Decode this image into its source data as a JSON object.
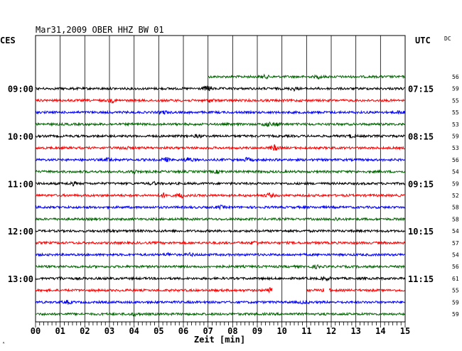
{
  "chart_data": {
    "type": "line",
    "title": "Mar31,2009   OBER HHZ BW 01",
    "left_axis_label": "CES",
    "right_axis_label": "UTC",
    "dc_label": "DC",
    "xlabel": "Zeit [min]",
    "corner_mark": "ᴬ",
    "x_ticks": [
      "00",
      "01",
      "02",
      "03",
      "04",
      "05",
      "06",
      "07",
      "08",
      "09",
      "10",
      "11",
      "12",
      "13",
      "14",
      "15"
    ],
    "xlim": [
      0,
      15
    ],
    "left_time_labels": [
      {
        "row": 1,
        "label": "09:00"
      },
      {
        "row": 5,
        "label": "10:00"
      },
      {
        "row": 9,
        "label": "11:00"
      },
      {
        "row": 13,
        "label": "12:00"
      },
      {
        "row": 17,
        "label": "13:00"
      }
    ],
    "right_time_labels": [
      {
        "row": 1,
        "label": "07:15"
      },
      {
        "row": 5,
        "label": "08:15"
      },
      {
        "row": 9,
        "label": "09:15"
      },
      {
        "row": 13,
        "label": "10:15"
      },
      {
        "row": 17,
        "label": "11:15"
      }
    ],
    "dc_values": [
      "56",
      "59",
      "55",
      "55",
      "53",
      "59",
      "53",
      "56",
      "54",
      "59",
      "52",
      "58",
      "58",
      "54",
      "57",
      "54",
      "56",
      "61",
      "55",
      "59",
      "59"
    ],
    "colors": {
      "black": "#000000",
      "red": "#ff0000",
      "blue": "#0000ff",
      "green": "#006400",
      "grid": "#000000"
    },
    "traces": [
      {
        "color": "green",
        "start_min": 7.0,
        "end_min": 15,
        "events": [
          [
            9.3,
            1.6
          ],
          [
            11.5,
            1.5
          ]
        ]
      },
      {
        "color": "black",
        "start_min": 0,
        "end_min": 15,
        "events": [
          [
            7.0,
            3.5
          ],
          [
            10.5,
            2.0
          ]
        ]
      },
      {
        "color": "red",
        "start_min": 0,
        "end_min": 15,
        "events": [
          [
            3.1,
            2.0
          ],
          [
            7.1,
            2.0
          ]
        ]
      },
      {
        "color": "blue",
        "start_min": 0,
        "end_min": 15,
        "events": [
          [
            5.2,
            1.8
          ],
          [
            14.8,
            2.0
          ]
        ]
      },
      {
        "color": "green",
        "start_min": 0,
        "end_min": 15,
        "events": [
          [
            9.4,
            2.6
          ],
          [
            9.8,
            1.8
          ]
        ]
      },
      {
        "color": "black",
        "start_min": 0,
        "end_min": 15,
        "events": [
          [
            6.6,
            1.6
          ],
          [
            12.8,
            1.8
          ]
        ]
      },
      {
        "color": "red",
        "start_min": 0,
        "end_min": 15,
        "events": [
          [
            3.6,
            2.0
          ],
          [
            9.7,
            3.5
          ]
        ]
      },
      {
        "color": "blue",
        "start_min": 0,
        "end_min": 15,
        "events": [
          [
            3.0,
            2.2
          ],
          [
            5.3,
            2.6
          ],
          [
            6.2,
            2.8
          ],
          [
            8.6,
            2.2
          ]
        ]
      },
      {
        "color": "green",
        "start_min": 0,
        "end_min": 15,
        "events": [
          [
            4.0,
            1.8
          ],
          [
            7.4,
            1.6
          ]
        ]
      },
      {
        "color": "black",
        "start_min": 0,
        "end_min": 15,
        "events": [
          [
            1.5,
            2.2
          ],
          [
            4.8,
            1.6
          ]
        ]
      },
      {
        "color": "red",
        "start_min": 0,
        "end_min": 15,
        "events": [
          [
            5.2,
            2.6
          ],
          [
            5.9,
            3.0
          ],
          [
            9.5,
            2.4
          ]
        ]
      },
      {
        "color": "blue",
        "start_min": 0,
        "end_min": 15,
        "events": [
          [
            7.5,
            1.6
          ]
        ]
      },
      {
        "color": "green",
        "start_min": 0,
        "end_min": 15,
        "events": [
          [
            12.2,
            1.6
          ]
        ]
      },
      {
        "color": "black",
        "start_min": 0,
        "end_min": 15,
        "events": [
          [
            3.0,
            1.5
          ]
        ]
      },
      {
        "color": "red",
        "start_min": 0,
        "end_min": 15,
        "events": [
          [
            8.9,
            1.8
          ]
        ]
      },
      {
        "color": "blue",
        "start_min": 0,
        "end_min": 15,
        "events": [
          [
            5.4,
            1.6
          ],
          [
            6.3,
            1.8
          ]
        ]
      },
      {
        "color": "green",
        "start_min": 0,
        "end_min": 15,
        "events": [
          [
            11.4,
            1.6
          ]
        ]
      },
      {
        "color": "black",
        "start_min": 0,
        "end_min": 15,
        "events": [
          [
            1.0,
            1.6
          ],
          [
            11.8,
            1.8
          ]
        ]
      },
      {
        "color": "red",
        "start_min": 0,
        "end_min": 15,
        "events": [
          [
            9.5,
            3.0
          ],
          [
            11.8,
            2.6
          ]
        ],
        "gaps": [
          [
            9.6,
            11.0
          ],
          [
            11.7,
            11.9
          ]
        ]
      },
      {
        "color": "blue",
        "start_min": 0,
        "end_min": 15,
        "events": [
          [
            1.3,
            2.0
          ],
          [
            10.9,
            1.6
          ]
        ]
      },
      {
        "color": "green",
        "start_min": 0,
        "end_min": 15,
        "events": [
          [
            4.0,
            1.6
          ]
        ]
      }
    ]
  }
}
